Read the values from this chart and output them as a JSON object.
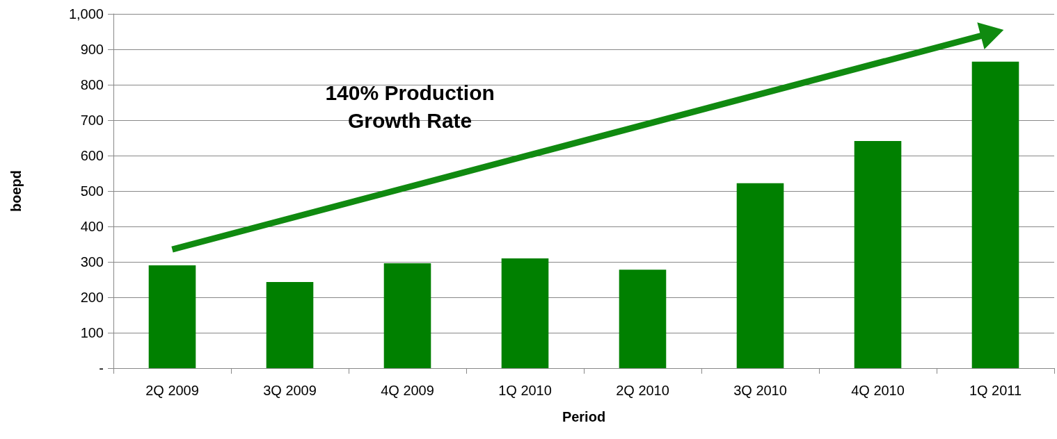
{
  "chart_data": {
    "type": "bar",
    "xlabel": "Period",
    "ylabel": "boepd",
    "categories": [
      "2Q 2009",
      "3Q 2009",
      "4Q 2009",
      "1Q 2010",
      "2Q 2010",
      "3Q 2010",
      "4Q 2010",
      "1Q 2011"
    ],
    "values": [
      290,
      243,
      296,
      310,
      278,
      522,
      641,
      865
    ],
    "color": "#008000",
    "ylim": [
      0,
      1000
    ],
    "yticks": [
      {
        "value": 0,
        "label": "-"
      },
      100,
      200,
      300,
      400,
      500,
      600,
      700,
      800,
      900,
      {
        "value": 1000,
        "label": "1,000"
      }
    ],
    "grid": "y",
    "annotations": [
      "140% Production Growth Rate"
    ]
  }
}
